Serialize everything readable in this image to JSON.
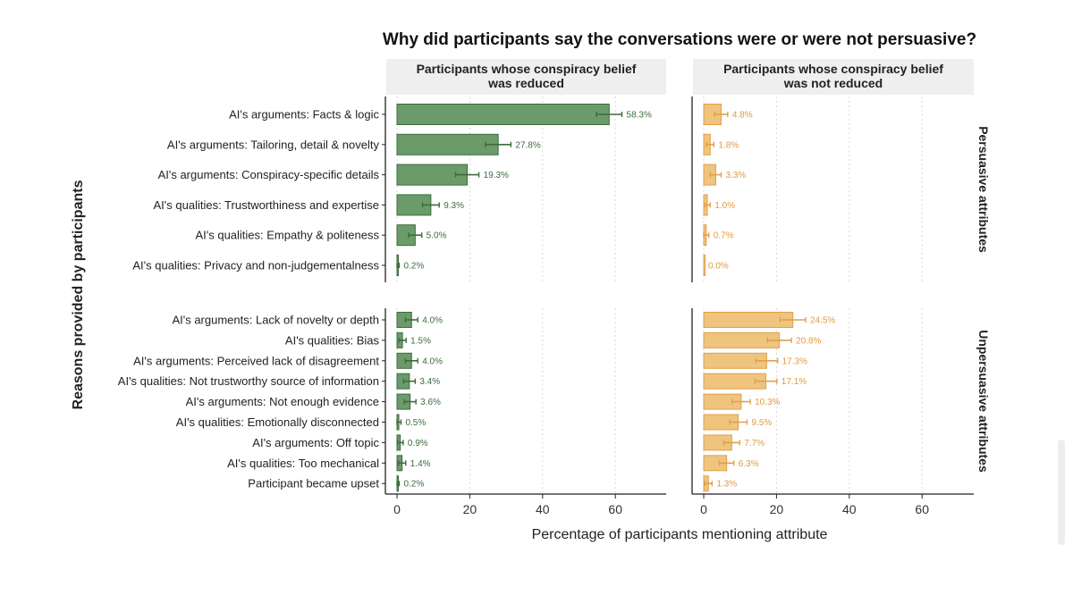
{
  "chart_data": {
    "type": "bar",
    "orientation": "horizontal",
    "title": "Why did participants say the conversations were or were not persuasive?",
    "xlabel": "Percentage of participants mentioning attribute",
    "ylabel": "Reasons provided by participants",
    "xlim": [
      0,
      75
    ],
    "xticks": [
      "0",
      "20",
      "40",
      "60"
    ],
    "xtick_values": [
      0,
      20,
      40,
      60
    ],
    "grid": true,
    "panels": [
      {
        "name": "Participants whose conspiracy belief was reduced",
        "label_lines": [
          "Participants whose conspiracy belief",
          "was reduced"
        ],
        "color": "#6b9b6b",
        "stroke": "#3d6b3d",
        "label_color": "#3d6b3d"
      },
      {
        "name": "Participants whose conspiracy belief was not reduced",
        "label_lines": [
          "Participants whose conspiracy belief",
          "was not reduced"
        ],
        "color": "#eec47f",
        "stroke": "#e2a04a",
        "label_color": "#e09a40"
      }
    ],
    "row_groups": [
      {
        "name": "Persuasive attributes",
        "categories": [
          "AI's arguments: Facts & logic",
          "AI's arguments: Tailoring, detail & novelty",
          "AI's arguments: Conspiracy-specific details",
          "AI's qualities: Trustworthiness and expertise",
          "AI's qualities: Empathy & politeness",
          "AI's qualities: Privacy and non-judgementalness"
        ],
        "series": [
          {
            "name": "Participants whose conspiracy belief was reduced",
            "values": [
              58.3,
              27.8,
              19.3,
              9.3,
              5.0,
              0.2
            ],
            "labels": [
              "58.3%",
              "27.8%",
              "19.3%",
              "9.3%",
              "5.0%",
              "0.2%"
            ],
            "errors": [
              3.5,
              3.5,
              3.2,
              2.3,
              1.8,
              0.4
            ]
          },
          {
            "name": "Participants whose conspiracy belief was not reduced",
            "values": [
              4.8,
              1.8,
              3.3,
              1.0,
              0.7,
              0.0
            ],
            "labels": [
              "4.8%",
              "1.8%",
              "3.3%",
              "1.0%",
              "0.7%",
              "0.0%"
            ],
            "errors": [
              1.8,
              1.0,
              1.5,
              0.8,
              0.7,
              0
            ]
          }
        ]
      },
      {
        "name": "Unpersuasive attributes",
        "categories": [
          "AI's arguments: Lack of novelty or depth",
          "AI's qualities: Bias",
          "AI's arguments: Perceived lack of disagreement",
          "AI's qualities: Not trustworthy source of information",
          "AI's arguments: Not enough evidence",
          "AI's qualities: Emotionally disconnected",
          "AI's arguments: Off topic",
          "AI's qualities: Too mechanical",
          "Participant became upset"
        ],
        "series": [
          {
            "name": "Participants whose conspiracy belief was reduced",
            "values": [
              4.0,
              1.5,
              4.0,
              3.4,
              3.6,
              0.5,
              0.9,
              1.4,
              0.2
            ],
            "labels": [
              "4.0%",
              "1.5%",
              "4.0%",
              "3.4%",
              "3.6%",
              "0.5%",
              "0.9%",
              "1.4%",
              "0.2%"
            ],
            "errors": [
              1.7,
              1.0,
              1.7,
              1.6,
              1.6,
              0.6,
              0.8,
              1.0,
              0.4
            ]
          },
          {
            "name": "Participants whose conspiracy belief was not reduced",
            "values": [
              24.5,
              20.8,
              17.3,
              17.1,
              10.3,
              9.5,
              7.7,
              6.3,
              1.3
            ],
            "labels": [
              "24.5%",
              "20.8%",
              "17.3%",
              "17.1%",
              "10.3%",
              "9.5%",
              "7.7%",
              "6.3%",
              "1.3%"
            ],
            "errors": [
              3.5,
              3.3,
              3.0,
              3.0,
              2.5,
              2.4,
              2.2,
              2.0,
              1.0
            ]
          }
        ]
      }
    ]
  }
}
